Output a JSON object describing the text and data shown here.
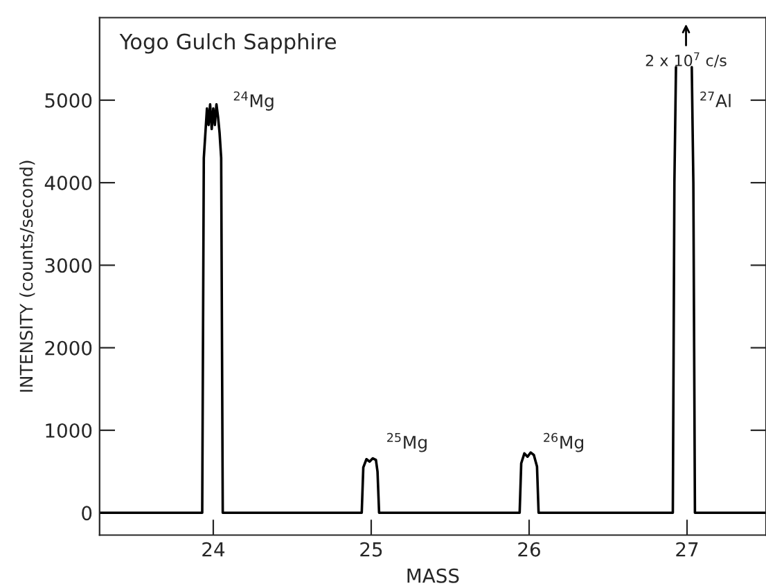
{
  "chart_data": {
    "type": "line",
    "title": "Yogo Gulch Sapphire",
    "xlabel": "MASS",
    "ylabel": "INTENSITY (counts/second)",
    "x": [
      23.28,
      23.93,
      23.94,
      23.96,
      23.97,
      23.98,
      23.99,
      24.0,
      24.01,
      24.02,
      24.03,
      24.04,
      24.05,
      24.06,
      24.07,
      24.94,
      24.95,
      24.97,
      24.99,
      25.01,
      25.03,
      25.04,
      25.05,
      25.94,
      25.95,
      25.97,
      25.99,
      26.01,
      26.03,
      26.05,
      26.06,
      26.07,
      26.91,
      26.92,
      26.93,
      26.98,
      27.03,
      27.04,
      27.05,
      27.5
    ],
    "series": [
      {
        "color": "#000000",
        "values": [
          0,
          0,
          4300,
          4900,
          4700,
          4950,
          4650,
          4900,
          4700,
          4950,
          4800,
          4600,
          4300,
          0,
          0,
          0,
          550,
          650,
          620,
          660,
          640,
          500,
          0,
          0,
          600,
          720,
          680,
          730,
          700,
          560,
          0,
          0,
          0,
          4000,
          5400,
          null,
          5400,
          4000,
          0,
          0
        ]
      }
    ],
    "annotations": [
      "$^{24}$Mg",
      "$^{25}$Mg",
      "$^{26}$Mg",
      "$^{27}$Al",
      "2 x 10$^{7}$ c/s"
    ],
    "xlim": [
      23.28,
      27.5
    ],
    "ylim": [
      -270,
      6000
    ],
    "xticks": [
      24,
      25,
      26,
      27
    ],
    "yticks": [
      0,
      1000,
      2000,
      3000,
      4000,
      5000
    ],
    "grid": false,
    "marker": "none",
    "line_style": "solid"
  }
}
